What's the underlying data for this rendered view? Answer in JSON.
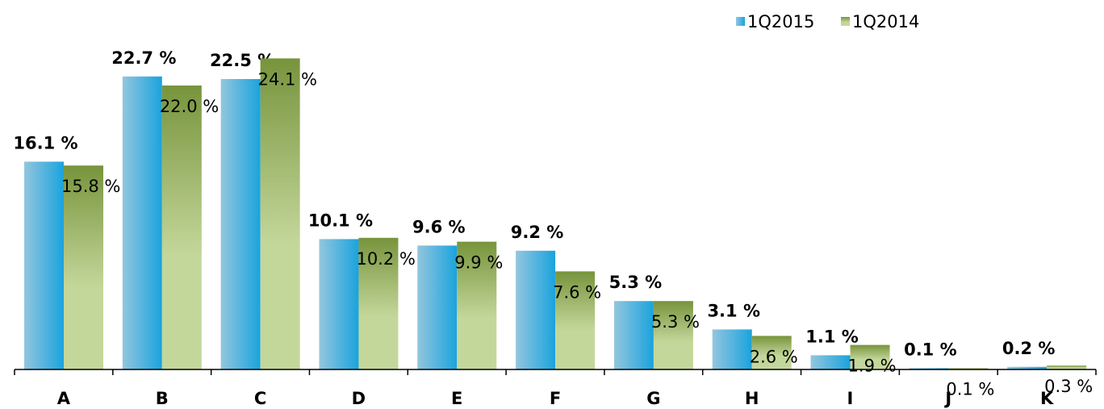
{
  "chart_data": {
    "type": "bar",
    "categories": [
      "A",
      "B",
      "C",
      "D",
      "E",
      "F",
      "G",
      "H",
      "I",
      "J",
      "K"
    ],
    "series": [
      {
        "name": "1Q2015",
        "color": "#1aa3dd",
        "values": [
          16.1,
          22.7,
          22.5,
          10.1,
          9.6,
          9.2,
          5.3,
          3.1,
          1.1,
          0.1,
          0.2
        ],
        "value_labels": [
          "16.1 %",
          "22.7 %",
          "22.5 %",
          "10.1 %",
          "9.6 %",
          "9.2 %",
          "5.3 %",
          "3.1 %",
          "1.1 %",
          "0.1 %",
          "0.2 %"
        ]
      },
      {
        "name": "1Q2014",
        "color": "#77943c",
        "values": [
          15.8,
          22.0,
          24.1,
          10.2,
          9.9,
          7.6,
          5.3,
          2.6,
          1.9,
          0.1,
          0.3
        ],
        "value_labels": [
          "15.8 %",
          "22.0 %",
          "24.1 %",
          "10.2 %",
          "9.9 %",
          "7.6 %",
          "5.3 %",
          "2.6 %",
          "1.9 %",
          "0.1 %",
          "0.3 %"
        ]
      }
    ],
    "ylim": [
      0,
      25
    ],
    "legend": "top-right"
  }
}
